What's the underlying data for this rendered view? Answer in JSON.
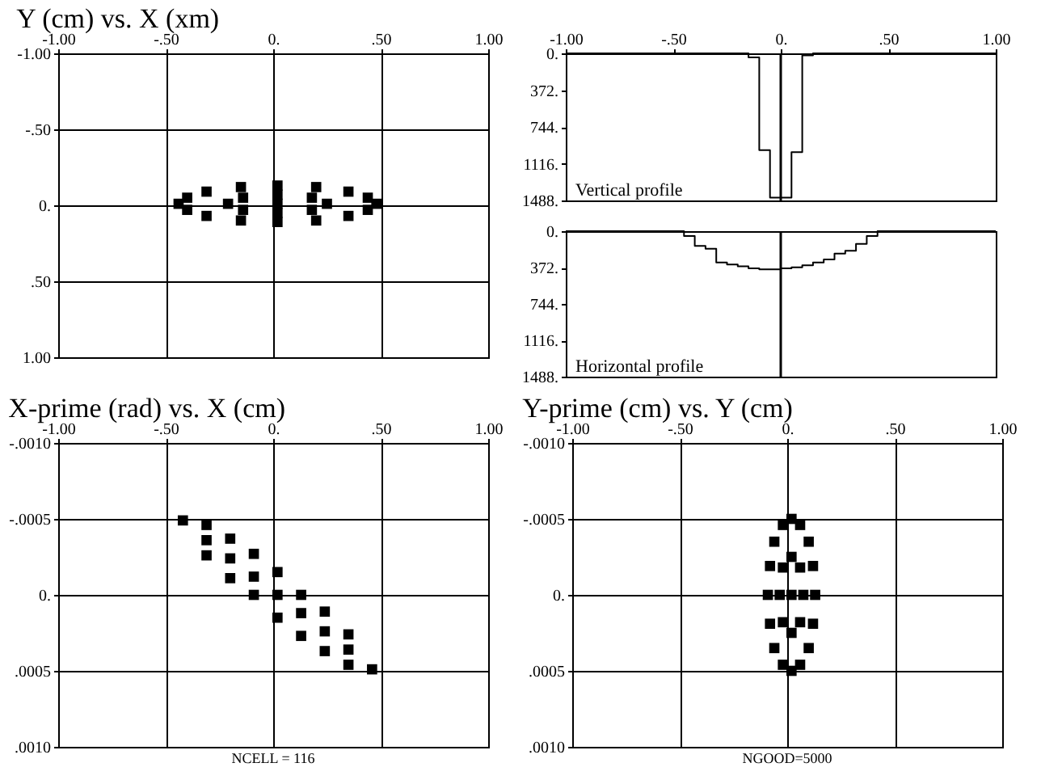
{
  "chart_data": [
    {
      "type": "scatter",
      "title": "Y (cm) vs. X (xm)",
      "marker": "square",
      "grid": true,
      "color": "#000000",
      "x": [
        0.48,
        0.44,
        0.35,
        0.2,
        0.02,
        -0.15,
        -0.31,
        -0.4,
        -0.44,
        -0.4,
        -0.31,
        -0.15,
        0.02,
        0.2,
        0.35,
        0.44,
        0.25,
        0.18,
        0.02,
        -0.14,
        -0.21,
        -0.14,
        0.02,
        0.18,
        0.02
      ],
      "values": [
        -0.01,
        0.03,
        0.07,
        0.1,
        0.11,
        0.1,
        0.07,
        0.03,
        -0.01,
        -0.05,
        -0.09,
        -0.12,
        -0.13,
        -0.12,
        -0.09,
        -0.05,
        -0.01,
        0.03,
        0.05,
        0.03,
        -0.01,
        -0.05,
        -0.07,
        -0.05,
        -0.01
      ],
      "xlim": [
        -1,
        1
      ],
      "ylim": [
        1,
        -1
      ],
      "xticks": [
        {
          "value": -1,
          "label": "-1.00"
        },
        {
          "value": -0.5,
          "label": "-.50"
        },
        {
          "value": 0,
          "label": "0."
        },
        {
          "value": 0.5,
          "label": ".50"
        },
        {
          "value": 1,
          "label": "1.00"
        }
      ],
      "yticks": [
        {
          "value": -1,
          "label": "-1.00"
        },
        {
          "value": -0.5,
          "label": "-.50"
        },
        {
          "value": 0,
          "label": "0."
        },
        {
          "value": 0.5,
          "label": ".50"
        },
        {
          "value": 1,
          "label": "1.00"
        }
      ]
    },
    {
      "type": "step",
      "title": "Vertical profile",
      "color": "#000000",
      "x": [
        -1,
        -0.95,
        -0.9,
        -0.85,
        -0.8,
        -0.75,
        -0.7,
        -0.65,
        -0.6,
        -0.55,
        -0.5,
        -0.45,
        -0.4,
        -0.35,
        -0.3,
        -0.25,
        -0.2,
        -0.15,
        -0.1,
        -0.05,
        0,
        0.05,
        0.1,
        0.15,
        0.2,
        0.25,
        0.3,
        0.35,
        0.4,
        0.45,
        0.5,
        0.55,
        0.6,
        0.65,
        0.7,
        0.75,
        0.8,
        0.85,
        0.9,
        0.95,
        1
      ],
      "values": [
        0,
        0,
        0,
        0,
        0,
        0,
        0,
        0,
        0,
        0,
        0,
        0,
        0,
        0,
        0,
        0,
        0,
        40,
        980,
        1460,
        1460,
        1000,
        20,
        0,
        0,
        0,
        0,
        0,
        0,
        0,
        0,
        0,
        0,
        0,
        0,
        0,
        0,
        0,
        0,
        0,
        0
      ],
      "xlim": [
        -1,
        1
      ],
      "ylim": [
        1488,
        0
      ],
      "xticks": [
        {
          "value": -1,
          "label": "-1.00"
        },
        {
          "value": -0.5,
          "label": "-.50"
        },
        {
          "value": 0,
          "label": "0."
        },
        {
          "value": 0.5,
          "label": ".50"
        },
        {
          "value": 1,
          "label": "1.00"
        }
      ],
      "yticks": [
        {
          "value": 0,
          "label": "0."
        },
        {
          "value": 372,
          "label": "372."
        },
        {
          "value": 744,
          "label": "744."
        },
        {
          "value": 1116,
          "label": "1116."
        },
        {
          "value": 1488,
          "label": "1488."
        }
      ],
      "ref_lines": [
        {
          "axis": "x",
          "value": 0
        }
      ]
    },
    {
      "type": "step",
      "title": "Horizontal profile",
      "color": "#000000",
      "tick_labels": "y",
      "x": [
        -1,
        -0.95,
        -0.9,
        -0.85,
        -0.8,
        -0.75,
        -0.7,
        -0.65,
        -0.6,
        -0.55,
        -0.5,
        -0.45,
        -0.4,
        -0.35,
        -0.3,
        -0.25,
        -0.2,
        -0.15,
        -0.1,
        -0.05,
        0,
        0.05,
        0.1,
        0.15,
        0.2,
        0.25,
        0.3,
        0.35,
        0.4,
        0.45,
        0.5,
        0.55,
        0.6,
        0.65,
        0.7,
        0.75,
        0.8,
        0.85,
        0.9,
        0.95,
        1
      ],
      "values": [
        0,
        0,
        0,
        0,
        0,
        0,
        0,
        0,
        0,
        0,
        0,
        50,
        150,
        180,
        320,
        340,
        360,
        380,
        390,
        390,
        380,
        370,
        350,
        320,
        290,
        230,
        200,
        130,
        50,
        0,
        0,
        0,
        0,
        0,
        0,
        0,
        0,
        0,
        0,
        0,
        0
      ],
      "xlim": [
        -1,
        1
      ],
      "ylim": [
        1488,
        0
      ],
      "yticks": [
        {
          "value": 0,
          "label": "0."
        },
        {
          "value": 372,
          "label": "372."
        },
        {
          "value": 744,
          "label": "744."
        },
        {
          "value": 1116,
          "label": "1116."
        },
        {
          "value": 1488,
          "label": "1488."
        }
      ],
      "ref_lines": [
        {
          "axis": "x",
          "value": 0
        }
      ]
    },
    {
      "type": "scatter",
      "title": "X-prime (rad) vs. X (cm)",
      "marker": "square",
      "grid": true,
      "color": "#000000",
      "x": [
        -0.42,
        -0.31,
        -0.31,
        -0.31,
        -0.2,
        -0.2,
        -0.2,
        -0.09,
        -0.09,
        -0.09,
        0.02,
        0.02,
        0.02,
        0.13,
        0.13,
        0.13,
        0.24,
        0.24,
        0.24,
        0.35,
        0.35,
        0.35,
        0.46
      ],
      "values": [
        -0.00049,
        -0.00046,
        -0.00036,
        -0.00026,
        -0.00037,
        -0.00024,
        -0.00011,
        -0.00027,
        -0.00012,
        0,
        -0.00015,
        0,
        0.00015,
        0,
        0.00012,
        0.00027,
        0.00011,
        0.00024,
        0.00037,
        0.00026,
        0.00036,
        0.00046,
        0.00049
      ],
      "xlim": [
        -1,
        1
      ],
      "ylim": [
        0.001,
        -0.001
      ],
      "xticks": [
        {
          "value": -1,
          "label": "-1.00"
        },
        {
          "value": -0.5,
          "label": "-.50"
        },
        {
          "value": 0,
          "label": "0."
        },
        {
          "value": 0.5,
          "label": ".50"
        },
        {
          "value": 1,
          "label": "1.00"
        }
      ],
      "yticks": [
        {
          "value": -0.001,
          "label": "-.0010"
        },
        {
          "value": -0.0005,
          "label": "-.0005"
        },
        {
          "value": 0,
          "label": "0."
        },
        {
          "value": 0.0005,
          "label": ".0005"
        },
        {
          "value": 0.001,
          "label": ".0010"
        }
      ],
      "annotations": [
        "NCELL =     116"
      ]
    },
    {
      "type": "scatter",
      "title": "Y-prime (cm) vs. Y (cm)",
      "marker": "square",
      "grid": true,
      "color": "#000000",
      "x": [
        0.13,
        0.12,
        0.1,
        0.06,
        0.02,
        -0.02,
        -0.06,
        -0.08,
        -0.09,
        -0.08,
        -0.06,
        -0.02,
        0.02,
        0.06,
        0.1,
        0.12,
        0.075,
        0.06,
        0.02,
        -0.02,
        -0.035,
        -0.02,
        0.02,
        0.06,
        0.02
      ],
      "values": [
        0,
        0.00019,
        0.00035,
        0.00046,
        0.0005,
        0.00046,
        0.00035,
        0.00019,
        0,
        -0.00019,
        -0.00035,
        -0.00046,
        -0.0005,
        -0.00046,
        -0.00035,
        -0.00019,
        0,
        0.00018,
        0.00025,
        0.00018,
        0,
        -0.00018,
        -0.00025,
        -0.00018,
        0
      ],
      "xlim": [
        -1,
        1
      ],
      "ylim": [
        0.001,
        -0.001
      ],
      "xticks": [
        {
          "value": -1,
          "label": "-1.00"
        },
        {
          "value": -0.5,
          "label": "-.50"
        },
        {
          "value": 0,
          "label": "0."
        },
        {
          "value": 0.5,
          "label": ".50"
        },
        {
          "value": 1,
          "label": "1.00"
        }
      ],
      "yticks": [
        {
          "value": -0.001,
          "label": "-.0010"
        },
        {
          "value": -0.0005,
          "label": "-.0005"
        },
        {
          "value": 0,
          "label": "0."
        },
        {
          "value": 0.0005,
          "label": ".0005"
        },
        {
          "value": 0.001,
          "label": ".0010"
        }
      ],
      "annotations": [
        "NGOOD=5000"
      ]
    }
  ]
}
